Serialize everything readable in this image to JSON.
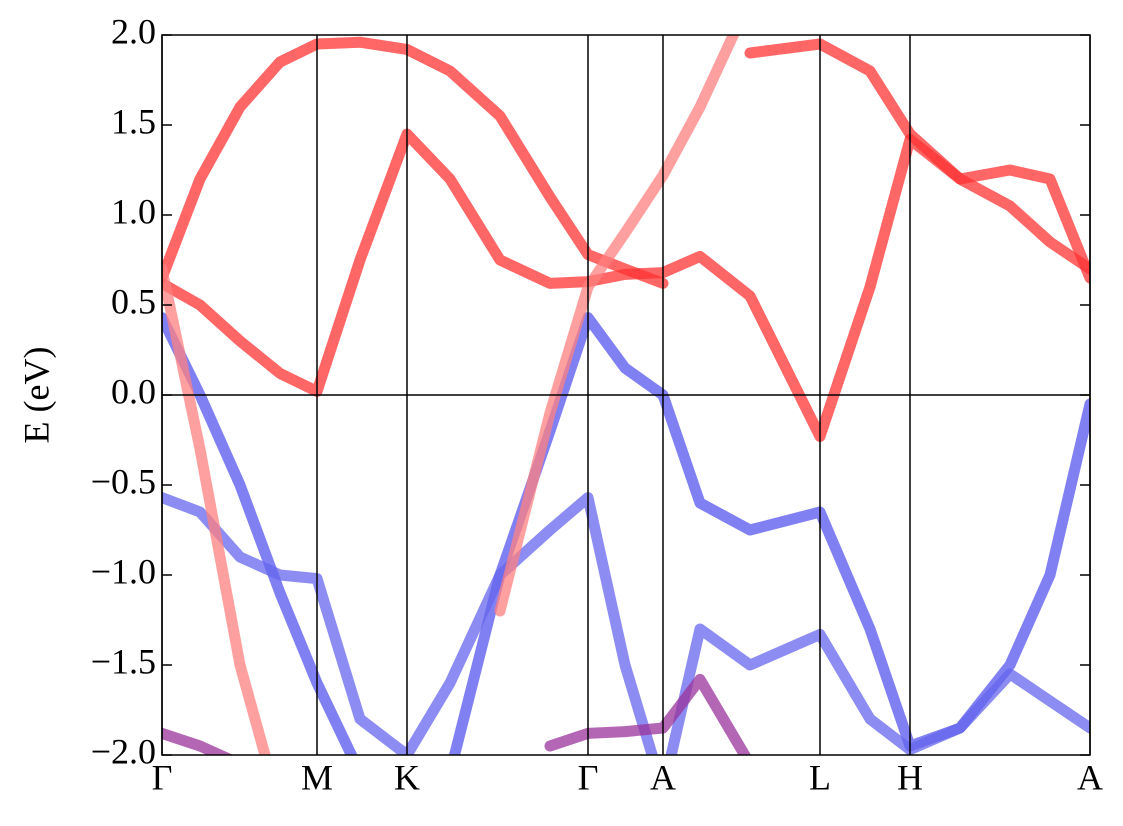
{
  "chart_data": {
    "type": "line",
    "y_label": "E (eV)",
    "x": [
      0,
      0.38,
      0.78,
      1.18,
      1.55,
      1.98,
      2.45,
      2.88,
      3.38,
      3.88,
      4.26,
      4.63,
      5.01,
      5.38,
      5.88,
      6.58,
      7.08,
      7.48,
      7.98,
      8.48,
      8.88,
      9.28
    ],
    "xlim": [
      0,
      9.28
    ],
    "xticks": [
      {
        "value": 0,
        "label": "Γ"
      },
      {
        "value": 1.55,
        "label": "M"
      },
      {
        "value": 2.45,
        "label": "K"
      },
      {
        "value": 4.26,
        "label": "Γ"
      },
      {
        "value": 5.01,
        "label": "A"
      },
      {
        "value": 6.58,
        "label": "L"
      },
      {
        "value": 7.48,
        "label": "H"
      },
      {
        "value": 9.28,
        "label": "A"
      }
    ],
    "ylim": [
      -2.0,
      2.0
    ],
    "yticks": [
      {
        "value": 2.0,
        "label": "2.0"
      },
      {
        "value": 1.5,
        "label": "1.5"
      },
      {
        "value": 1.0,
        "label": "1.0"
      },
      {
        "value": 0.5,
        "label": "0.5"
      },
      {
        "value": 0.0,
        "label": "0.0"
      },
      {
        "value": -0.5,
        "label": "−0.5"
      },
      {
        "value": -1.0,
        "label": "−1.0"
      },
      {
        "value": -1.5,
        "label": "−1.5"
      },
      {
        "value": -2.0,
        "label": "−2.0"
      }
    ],
    "zero_line": true,
    "tick_lines": true,
    "series": [
      {
        "color": "#ff3333",
        "values": [
          0.62,
          0.5,
          0.3,
          0.12,
          0.02,
          0.75,
          1.45,
          1.2,
          0.75,
          0.62,
          0.63,
          0.67,
          0.68,
          0.77,
          0.55,
          -0.23,
          0.6,
          1.42,
          1.2,
          1.25,
          1.2,
          0.65
        ]
      },
      {
        "color": "#ff3333",
        "values": [
          0.65,
          1.2,
          1.6,
          1.85,
          1.95,
          1.96,
          1.92,
          1.8,
          1.55,
          1.1,
          0.78,
          0.7,
          0.62,
          null,
          1.9,
          1.95,
          1.8,
          1.45,
          1.2,
          1.05,
          0.85,
          0.7
        ]
      },
      {
        "color": "#5555ee",
        "values": [
          0.43,
          0.0,
          -0.5,
          -1.1,
          -1.6,
          -2.1,
          -2.5,
          -2.1,
          -1.0,
          -0.2,
          0.43,
          0.15,
          0.0,
          -0.6,
          -0.75,
          -0.65,
          -1.3,
          -1.95,
          -1.85,
          -1.5,
          -1.0,
          -0.05
        ]
      },
      {
        "color": "#6666ee",
        "values": [
          -0.57,
          -0.65,
          -0.9,
          -1.0,
          -1.02,
          -1.8,
          -2.0,
          -1.6,
          -1.0,
          -0.75,
          -0.57,
          -1.5,
          -2.2,
          -1.3,
          -1.5,
          -1.33,
          -1.8,
          -1.97,
          -1.85,
          -1.55,
          -1.7,
          -1.85
        ]
      },
      {
        "color": "#993399",
        "values": [
          -1.88,
          -1.95,
          -2.05,
          null,
          null,
          null,
          null,
          null,
          null,
          -1.95,
          -1.88,
          -1.87,
          -1.85,
          -1.58,
          -2.05,
          null,
          null,
          null,
          null,
          null,
          null,
          null
        ]
      },
      {
        "color": "#ff8080",
        "values": [
          0.7,
          -0.3,
          -1.5,
          -2.3,
          null,
          null,
          null,
          null,
          -1.2,
          -0.1,
          0.6,
          0.9,
          1.22,
          1.6,
          2.2,
          null,
          null,
          null,
          null,
          null,
          null,
          null
        ]
      }
    ]
  }
}
